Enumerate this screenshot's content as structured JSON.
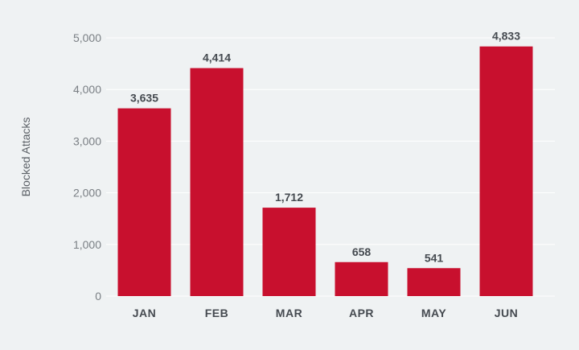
{
  "chart_data": {
    "type": "bar",
    "categories": [
      "JAN",
      "FEB",
      "MAR",
      "APR",
      "MAY",
      "JUN"
    ],
    "values": [
      3635,
      4414,
      1712,
      658,
      541,
      4833
    ],
    "data_labels": [
      "3,635",
      "4,414",
      "1,712",
      "658",
      "541",
      "4,833"
    ],
    "ylabel": "Blocked Attacks",
    "ylim": [
      0,
      5000
    ],
    "yticks": [
      0,
      1000,
      2000,
      3000,
      4000,
      5000
    ],
    "ytick_labels": [
      "0",
      "1,000",
      "2,000",
      "3,000",
      "4,000",
      "5,000"
    ],
    "grid": true,
    "bar_color": "#c8102e"
  }
}
